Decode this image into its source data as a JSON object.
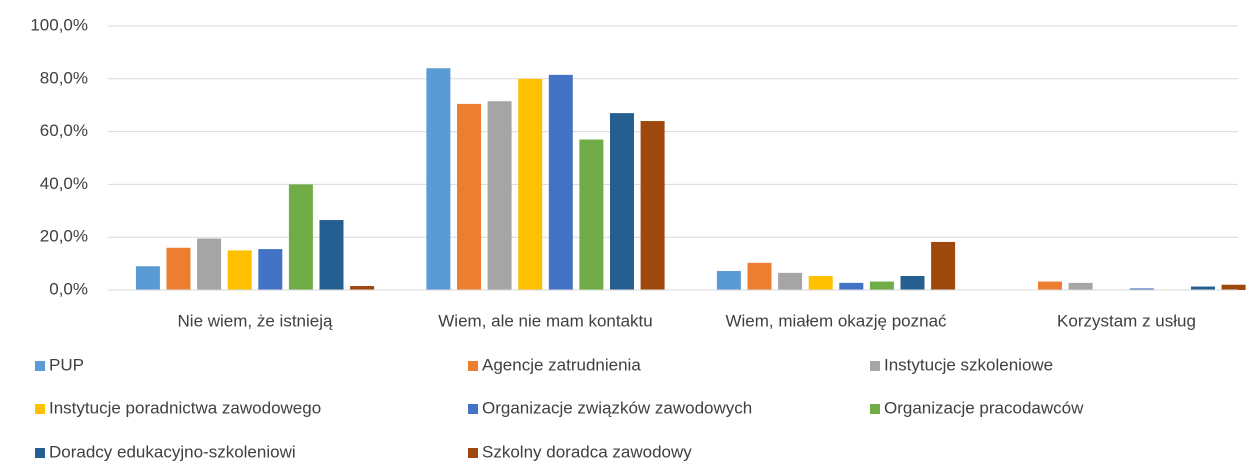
{
  "chart_data": {
    "type": "bar",
    "categories": [
      "Nie wiem, że istnieją",
      "Wiem, ale nie mam kontaktu",
      "Wiem, miałem okazję poznać",
      "Korzystam z usług"
    ],
    "series": [
      {
        "name": "PUP",
        "color": "#5b9bd5",
        "values": [
          9.0,
          84.0,
          7.2,
          0
        ]
      },
      {
        "name": "Agencje zatrudnienia",
        "color": "#ed7d31",
        "values": [
          16.0,
          70.5,
          10.3,
          3.2
        ]
      },
      {
        "name": "Instytucje szkoleniowe",
        "color": "#a5a5a5",
        "values": [
          19.5,
          71.5,
          6.5,
          2.7
        ]
      },
      {
        "name": "Instytucje poradnictwa zawodowego",
        "color": "#ffc000",
        "values": [
          15.0,
          80.0,
          5.3,
          0
        ]
      },
      {
        "name": "Organizacje związków zawodowych",
        "color": "#4472c4",
        "values": [
          15.5,
          81.5,
          2.7,
          0.6
        ]
      },
      {
        "name": "Organizacje pracodawców",
        "color": "#70ad47",
        "values": [
          40.0,
          57.0,
          3.2,
          0
        ]
      },
      {
        "name": "Doradcy edukacyjno-szkoleniowi",
        "color": "#255e91",
        "values": [
          26.5,
          67.0,
          5.3,
          1.3
        ]
      },
      {
        "name": "Szkolny doradca zawodowy",
        "color": "#9e480e",
        "values": [
          1.5,
          64.0,
          18.2,
          2.0
        ]
      }
    ],
    "ylim": [
      0,
      100
    ],
    "yticks": [
      {
        "value": 0,
        "label": "0,0%"
      },
      {
        "value": 20,
        "label": "20,0%"
      },
      {
        "value": 40,
        "label": "40,0%"
      },
      {
        "value": 60,
        "label": "60,0%"
      },
      {
        "value": 80,
        "label": "80,0%"
      },
      {
        "value": 100,
        "label": "100,0%"
      }
    ],
    "grid": true,
    "legend": "bottom"
  }
}
